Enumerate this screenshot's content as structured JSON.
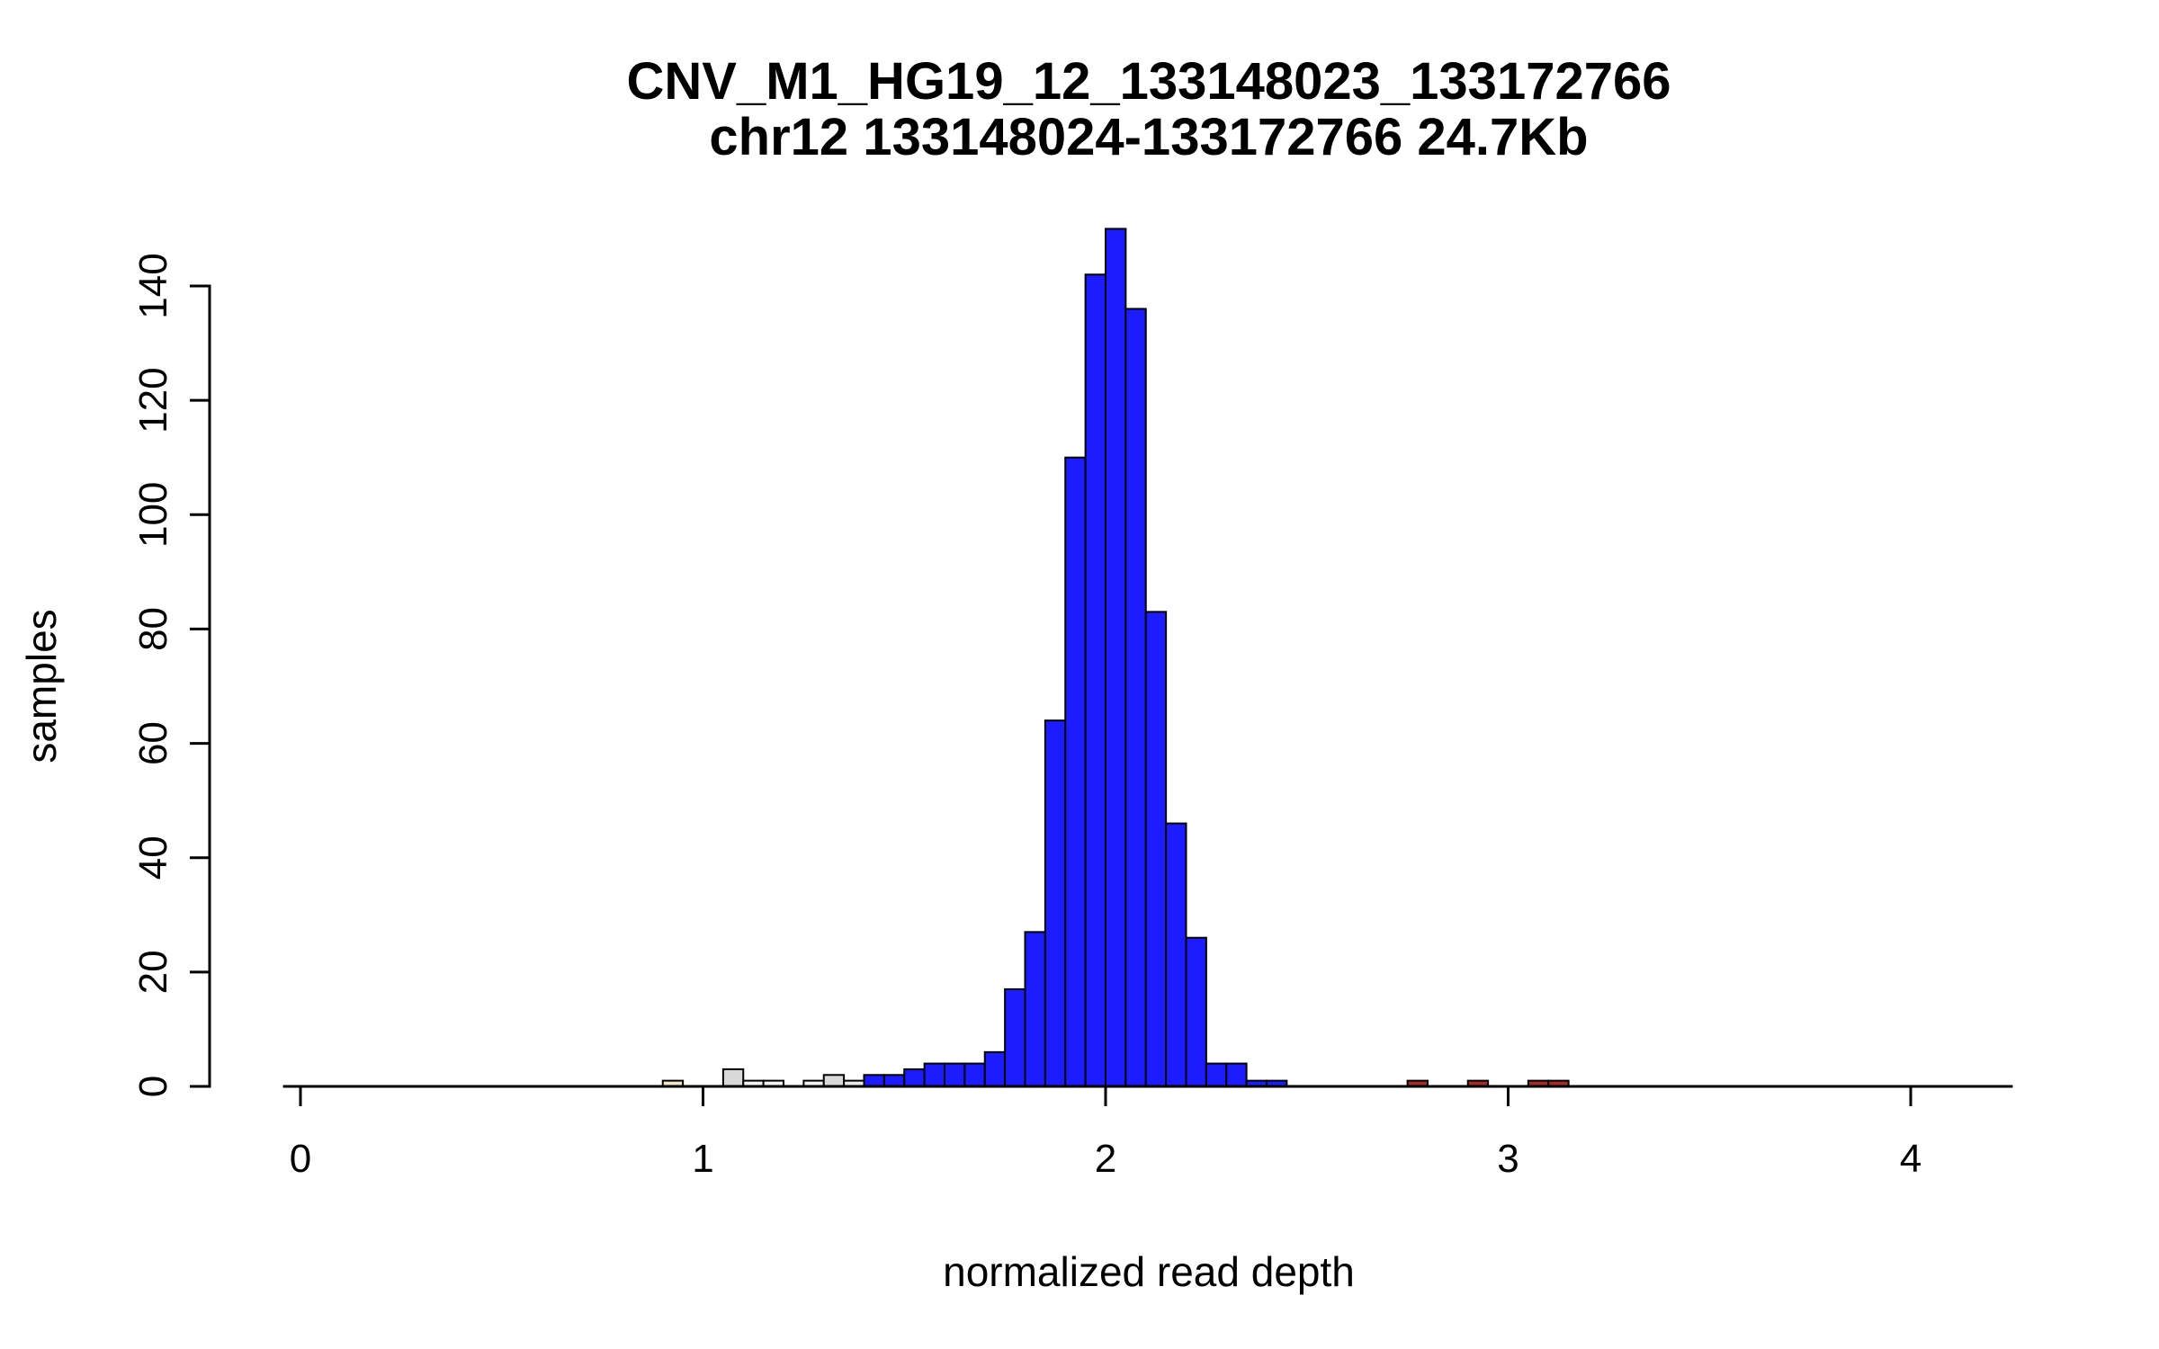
{
  "chart_data": {
    "type": "bar",
    "subtype": "histogram",
    "title": "CNV_M1_HG19_12_133148023_133172766",
    "subtitle": "chr12 133148024-133172766 24.7Kb",
    "xlabel": "normalized read depth",
    "ylabel": "samples",
    "x_ticks": [
      "0",
      "1",
      "2",
      "3",
      "4"
    ],
    "x_tick_values": [
      0,
      1,
      2,
      3,
      4
    ],
    "y_ticks": [
      "0",
      "20",
      "40",
      "60",
      "80",
      "100",
      "120",
      "140"
    ],
    "y_tick_values": [
      0,
      20,
      40,
      60,
      80,
      100,
      120,
      140
    ],
    "xlim": [
      -0.04,
      4.25
    ],
    "ylim": [
      0,
      150
    ],
    "grid": false,
    "legend_position": "none",
    "bin_width": 0.05,
    "colors": {
      "main_peak": "#1c1cff",
      "low_outlier_gray": "#d9d9d9",
      "low_outlier_white": "#f2f2f2",
      "low_outlier_beige": "#f2e4c6",
      "high_outlier_red": "#a52a2a",
      "bar_stroke": "#000000",
      "axis": "#000000"
    },
    "bars": [
      {
        "x": 0.9,
        "height": 1,
        "color": "#f2e4c6"
      },
      {
        "x": 1.05,
        "height": 3,
        "color": "#d9d9d9"
      },
      {
        "x": 1.1,
        "height": 1,
        "color": "#f2f2f2"
      },
      {
        "x": 1.15,
        "height": 1,
        "color": "#f2f2f2"
      },
      {
        "x": 1.25,
        "height": 1,
        "color": "#f2f2f2"
      },
      {
        "x": 1.3,
        "height": 2,
        "color": "#d9d9d9"
      },
      {
        "x": 1.35,
        "height": 1,
        "color": "#e8e8e8"
      },
      {
        "x": 1.4,
        "height": 2,
        "color": "#1c1cff"
      },
      {
        "x": 1.45,
        "height": 2,
        "color": "#1c1cff"
      },
      {
        "x": 1.5,
        "height": 3,
        "color": "#1c1cff"
      },
      {
        "x": 1.55,
        "height": 4,
        "color": "#1c1cff"
      },
      {
        "x": 1.6,
        "height": 4,
        "color": "#1c1cff"
      },
      {
        "x": 1.65,
        "height": 4,
        "color": "#1c1cff"
      },
      {
        "x": 1.7,
        "height": 6,
        "color": "#1c1cff"
      },
      {
        "x": 1.75,
        "height": 17,
        "color": "#1c1cff"
      },
      {
        "x": 1.8,
        "height": 27,
        "color": "#1c1cff"
      },
      {
        "x": 1.85,
        "height": 64,
        "color": "#1c1cff"
      },
      {
        "x": 1.9,
        "height": 110,
        "color": "#1c1cff"
      },
      {
        "x": 1.95,
        "height": 142,
        "color": "#1c1cff"
      },
      {
        "x": 2.0,
        "height": 150,
        "color": "#1c1cff"
      },
      {
        "x": 2.05,
        "height": 136,
        "color": "#1c1cff"
      },
      {
        "x": 2.1,
        "height": 83,
        "color": "#1c1cff"
      },
      {
        "x": 2.15,
        "height": 46,
        "color": "#1c1cff"
      },
      {
        "x": 2.2,
        "height": 26,
        "color": "#1c1cff"
      },
      {
        "x": 2.25,
        "height": 4,
        "color": "#1c1cff"
      },
      {
        "x": 2.3,
        "height": 4,
        "color": "#1c1cff"
      },
      {
        "x": 2.35,
        "height": 1,
        "color": "#1c1cff"
      },
      {
        "x": 2.4,
        "height": 1,
        "color": "#1c1cff"
      },
      {
        "x": 2.75,
        "height": 1,
        "color": "#a52a2a"
      },
      {
        "x": 2.9,
        "height": 1,
        "color": "#a52a2a"
      },
      {
        "x": 3.05,
        "height": 1,
        "color": "#a52a2a"
      },
      {
        "x": 3.1,
        "height": 1,
        "color": "#a52a2a"
      }
    ]
  }
}
